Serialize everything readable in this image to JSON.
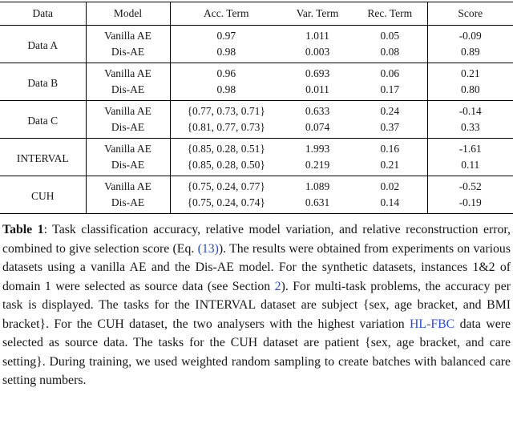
{
  "table": {
    "headers": [
      "Data",
      "Model",
      "Acc. Term",
      "Var. Term",
      "Rec. Term",
      "Score"
    ],
    "groups": [
      {
        "data": "Data A",
        "rows": [
          {
            "model": "Vanilla AE",
            "acc": "0.97",
            "var": "1.011",
            "rec": "0.05",
            "score": "-0.09",
            "bold": false
          },
          {
            "model": "Dis-AE",
            "acc": "0.98",
            "var": "0.003",
            "rec": "0.08",
            "score": "0.89",
            "bold": true
          }
        ]
      },
      {
        "data": "Data B",
        "rows": [
          {
            "model": "Vanilla AE",
            "acc": "0.96",
            "var": "0.693",
            "rec": "0.06",
            "score": "0.21",
            "bold": false
          },
          {
            "model": "Dis-AE",
            "acc": "0.98",
            "var": "0.011",
            "rec": "0.17",
            "score": "0.80",
            "bold": true
          }
        ]
      },
      {
        "data": "Data C",
        "rows": [
          {
            "model": "Vanilla AE",
            "acc": "{0.77, 0.73, 0.71}",
            "var": "0.633",
            "rec": "0.24",
            "score": "-0.14",
            "bold": false
          },
          {
            "model": "Dis-AE",
            "acc": "{0.81, 0.77, 0.73}",
            "var": "0.074",
            "rec": "0.37",
            "score": "0.33",
            "bold": true
          }
        ]
      },
      {
        "data": "INTERVAL",
        "rows": [
          {
            "model": "Vanilla AE",
            "acc": "{0.85, 0.28, 0.51}",
            "var": "1.993",
            "rec": "0.16",
            "score": "-1.61",
            "bold": false
          },
          {
            "model": "Dis-AE",
            "acc": "{0.85, 0.28, 0.50}",
            "var": "0.219",
            "rec": "0.21",
            "score": "0.11",
            "bold": true
          }
        ]
      },
      {
        "data": "CUH",
        "rows": [
          {
            "model": "Vanilla AE",
            "acc": "{0.75, 0.24, 0.77}",
            "var": "1.089",
            "rec": "0.02",
            "score": "-0.52",
            "bold": false
          },
          {
            "model": "Dis-AE",
            "acc": "{0.75, 0.24, 0.74}",
            "var": "0.631",
            "rec": "0.14",
            "score": "-0.19",
            "bold": true
          }
        ]
      }
    ]
  },
  "caption": {
    "label": "Table 1",
    "segments": [
      {
        "text": "Table 1",
        "style": "bold"
      },
      {
        "text": ": Task classification accuracy, relative model variation, and relative reconstruction error, combined to give selection score (Eq. ",
        "style": "normal"
      },
      {
        "text": "(13)",
        "style": "link"
      },
      {
        "text": "). The results were obtained from experiments on various datasets using a vanilla AE and the Dis-AE model. For the synthetic datasets, instances 1&2 of domain 1 were selected as source data (see Section ",
        "style": "normal"
      },
      {
        "text": "2",
        "style": "link"
      },
      {
        "text": "). For multi-task problems, the accuracy per task is displayed. The tasks for the INTERVAL dataset are subject {sex, age bracket, and BMI bracket}. For the CUH dataset, the two analysers with the highest variation ",
        "style": "normal"
      },
      {
        "text": "HL-FBC",
        "style": "link"
      },
      {
        "text": " data were selected as source data. The tasks for the CUH dataset are patient {sex, age bracket, and care setting}. During training, we used weighted random sampling to create batches with balanced care setting numbers.",
        "style": "normal"
      }
    ]
  },
  "colors": {
    "text": "#161616",
    "rule": "#000000",
    "background": "#ffffff",
    "link_blue": "#2a4bd7"
  }
}
